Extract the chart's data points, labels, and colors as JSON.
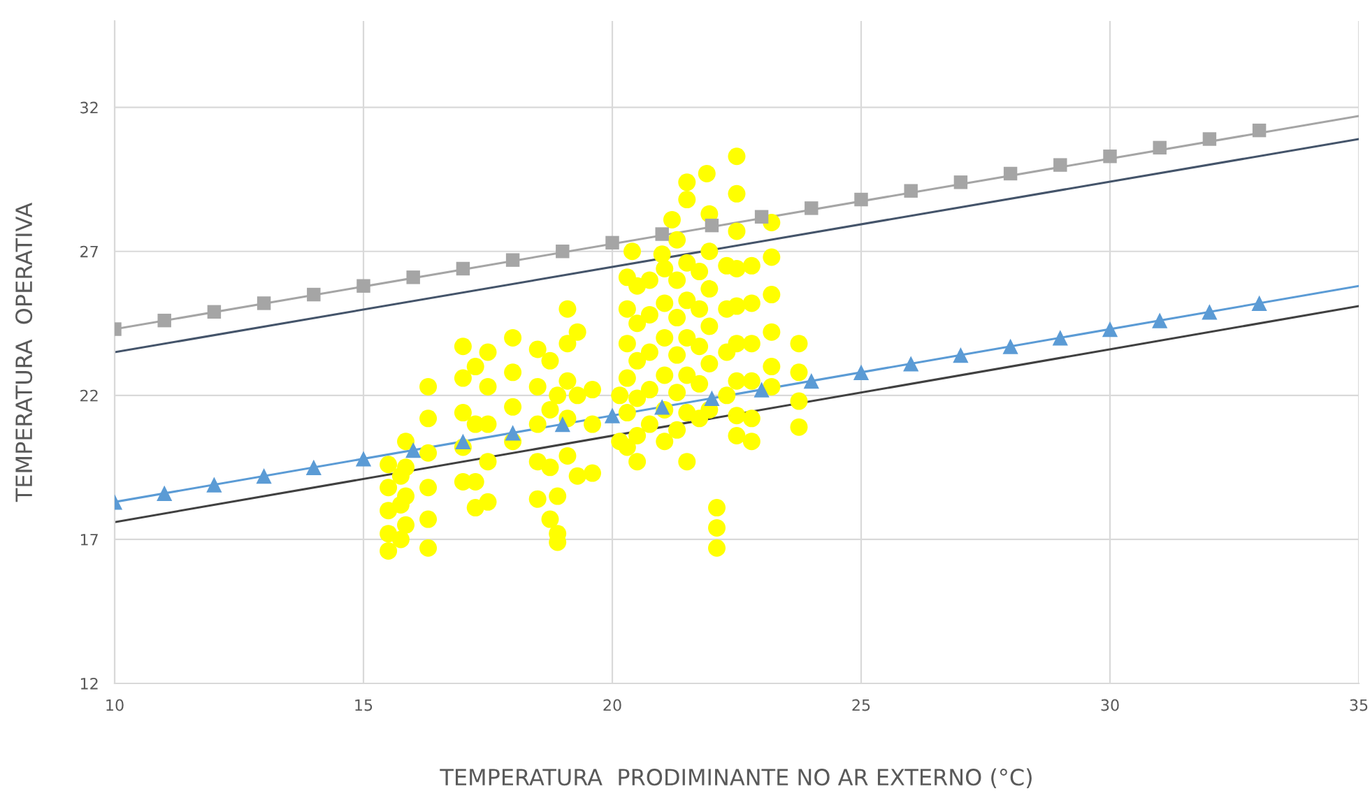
{
  "chart_data": {
    "type": "scatter",
    "xlabel": "TEMPERATURA  PRODIMINANTE NO AR EXTERNO (°C)",
    "ylabel": "TEMPERATURA  OPERATIVA",
    "xlim": [
      10,
      35
    ],
    "xticks": [
      10,
      15,
      20,
      25,
      30,
      35
    ],
    "ylim": [
      12,
      35
    ],
    "yticks": [
      12,
      17,
      22,
      27,
      32
    ],
    "grid": true,
    "legend": false,
    "series": [
      {
        "type": "line",
        "color": "#44546a",
        "x": [
          10,
          35
        ],
        "values": [
          23.5,
          30.9
        ],
        "marker": "none",
        "line_style": "solid"
      },
      {
        "type": "line",
        "color": "#a5a5a5",
        "x": [
          10,
          35
        ],
        "values": [
          24.3,
          31.7
        ],
        "marker": "none",
        "line_style": "solid"
      },
      {
        "type": "line",
        "color": "#5b9bd5",
        "x": [
          10,
          35
        ],
        "values": [
          18.3,
          25.8
        ],
        "marker": "none",
        "line_style": "solid"
      },
      {
        "type": "line",
        "color": "#404040",
        "x": [
          10,
          35
        ],
        "values": [
          17.6,
          25.1
        ],
        "marker": "none",
        "line_style": "solid"
      },
      {
        "color": "#ffff00",
        "marker": "circle",
        "x": [
          15.5,
          15.5,
          15.5,
          15.5,
          15.5,
          15.75,
          15.75,
          15.75,
          15.85,
          15.85,
          15.85,
          15.85,
          16.3,
          16.3,
          16.3,
          16.3,
          16.3,
          16.3,
          17.0,
          17.0,
          17.0,
          17.0,
          17.0,
          17.25,
          17.25,
          17.25,
          17.25,
          17.5,
          17.5,
          17.5,
          17.5,
          17.5,
          18.0,
          18.0,
          18.0,
          18.0,
          18.5,
          18.5,
          18.5,
          18.5,
          18.5,
          18.75,
          18.75,
          18.75,
          18.75,
          18.9,
          18.9,
          18.9,
          18.9,
          19.1,
          19.1,
          19.1,
          19.1,
          19.1,
          19.3,
          19.3,
          19.3,
          19.6,
          19.6,
          19.6,
          20.15,
          20.15,
          20.3,
          20.3,
          20.3,
          20.3,
          20.3,
          20.3,
          20.5,
          20.5,
          20.5,
          20.5,
          20.5,
          20.5,
          20.75,
          20.75,
          20.75,
          20.75,
          20.75,
          21.05,
          21.05,
          21.05,
          21.05,
          21.05,
          21.05,
          21.3,
          21.3,
          21.3,
          21.3,
          21.3,
          21.5,
          21.5,
          21.5,
          21.5,
          21.5,
          21.5,
          21.75,
          21.75,
          21.75,
          21.75,
          21.75,
          21.95,
          21.95,
          21.95,
          21.95,
          21.95,
          21.95,
          22.1,
          22.1,
          22.1,
          22.3,
          22.3,
          22.3,
          22.3,
          22.5,
          22.5,
          22.5,
          22.5,
          22.5,
          22.5,
          22.5,
          22.5,
          22.5,
          22.8,
          22.8,
          22.8,
          22.8,
          22.8,
          22.8,
          23.2,
          23.2,
          23.2,
          23.2,
          23.2,
          23.2,
          23.75,
          23.75,
          23.75,
          23.75,
          20.4,
          21.5,
          21.5,
          21.9,
          21.2,
          21.0,
          21.3
        ],
        "values": [
          19.6,
          18.8,
          18.0,
          17.2,
          16.6,
          19.2,
          18.2,
          17.0,
          20.4,
          19.5,
          18.5,
          17.5,
          22.3,
          21.2,
          20.0,
          18.8,
          17.7,
          16.7,
          23.7,
          22.6,
          21.4,
          20.2,
          19.0,
          23.0,
          21.0,
          19.0,
          18.1,
          23.5,
          22.3,
          21.0,
          19.7,
          18.3,
          24.0,
          22.8,
          21.6,
          20.4,
          23.6,
          22.3,
          21.0,
          19.7,
          18.4,
          23.2,
          21.5,
          19.5,
          17.7,
          22.0,
          18.5,
          17.2,
          16.9,
          25.0,
          23.8,
          22.5,
          21.2,
          19.9,
          24.2,
          22.0,
          19.2,
          22.2,
          21.0,
          19.3,
          22.0,
          20.4,
          26.1,
          25.0,
          23.8,
          22.6,
          21.4,
          20.2,
          25.8,
          24.5,
          23.2,
          21.9,
          20.6,
          19.7,
          26.0,
          24.8,
          23.5,
          22.2,
          21.0,
          26.4,
          25.2,
          24.0,
          22.7,
          21.5,
          20.4,
          26.0,
          24.7,
          23.4,
          22.1,
          20.8,
          26.6,
          25.3,
          24.0,
          22.7,
          21.4,
          19.7,
          26.3,
          25.0,
          23.7,
          22.4,
          21.2,
          28.3,
          27.0,
          25.7,
          24.4,
          23.1,
          21.5,
          18.1,
          17.4,
          16.7,
          26.5,
          25.0,
          23.5,
          22.0,
          30.3,
          29.0,
          27.7,
          26.4,
          25.1,
          23.8,
          22.5,
          21.3,
          20.6,
          26.5,
          25.2,
          23.8,
          22.5,
          21.2,
          20.4,
          28.0,
          26.8,
          25.5,
          24.2,
          23.0,
          22.3,
          23.8,
          22.8,
          21.8,
          20.9,
          27.0,
          29.4,
          28.8,
          29.7,
          28.1,
          26.9,
          27.4
        ]
      },
      {
        "color": "#a5a5a5",
        "marker": "square",
        "x": [
          10,
          11,
          12,
          13,
          14,
          15,
          16,
          17,
          18,
          19,
          20,
          21,
          22,
          23,
          24,
          25,
          26,
          27,
          28,
          29,
          30,
          31,
          32,
          33
        ],
        "values": [
          24.3,
          24.6,
          24.9,
          25.2,
          25.5,
          25.8,
          26.1,
          26.4,
          26.7,
          27.0,
          27.3,
          27.6,
          27.9,
          28.2,
          28.5,
          28.8,
          29.1,
          29.4,
          29.7,
          30.0,
          30.3,
          30.6,
          30.9,
          31.2
        ]
      },
      {
        "color": "#5b9bd5",
        "marker": "triangle",
        "x": [
          10,
          11,
          12,
          13,
          14,
          15,
          16,
          17,
          18,
          19,
          20,
          21,
          22,
          23,
          24,
          25,
          26,
          27,
          28,
          29,
          30,
          31,
          32,
          33
        ],
        "values": [
          18.3,
          18.6,
          18.9,
          19.2,
          19.5,
          19.8,
          20.1,
          20.4,
          20.7,
          21.0,
          21.3,
          21.6,
          21.9,
          22.2,
          22.5,
          22.8,
          23.1,
          23.4,
          23.7,
          24.0,
          24.3,
          24.6,
          24.9,
          25.2
        ]
      }
    ]
  }
}
